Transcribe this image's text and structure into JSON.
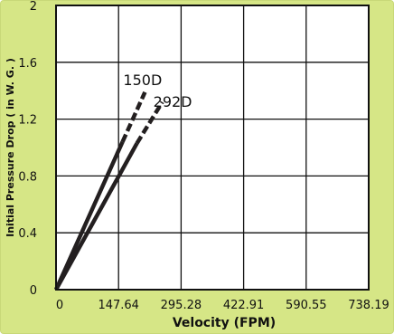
{
  "chart_data": {
    "type": "line",
    "title": "",
    "xlabel": "Velocity (FPM)",
    "ylabel": "Initial Pressure Drop ( in W. G. )",
    "xlim": [
      0,
      738.19
    ],
    "ylim": [
      0,
      2
    ],
    "x_ticks": [
      "0",
      "147.64",
      "295.28",
      "422.91",
      "590.55",
      "738.19"
    ],
    "y_ticks": [
      "0",
      "0.4",
      "0.8",
      "1.2",
      "1.6",
      "2"
    ],
    "grid": true,
    "series": [
      {
        "name": "150D",
        "solid": {
          "x": [
            0,
            157
          ],
          "y": [
            0,
            1.04
          ]
        },
        "dashed": {
          "x": [
            157,
            210
          ],
          "y": [
            1.04,
            1.39
          ]
        }
      },
      {
        "name": "292D",
        "solid": {
          "x": [
            0,
            191
          ],
          "y": [
            0,
            1.03
          ]
        },
        "dashed": {
          "x": [
            191,
            251
          ],
          "y": [
            1.03,
            1.32
          ]
        }
      }
    ],
    "colors": {
      "background": "#d6e686",
      "plot_area": "#ffffff",
      "line": "#231f20"
    }
  }
}
